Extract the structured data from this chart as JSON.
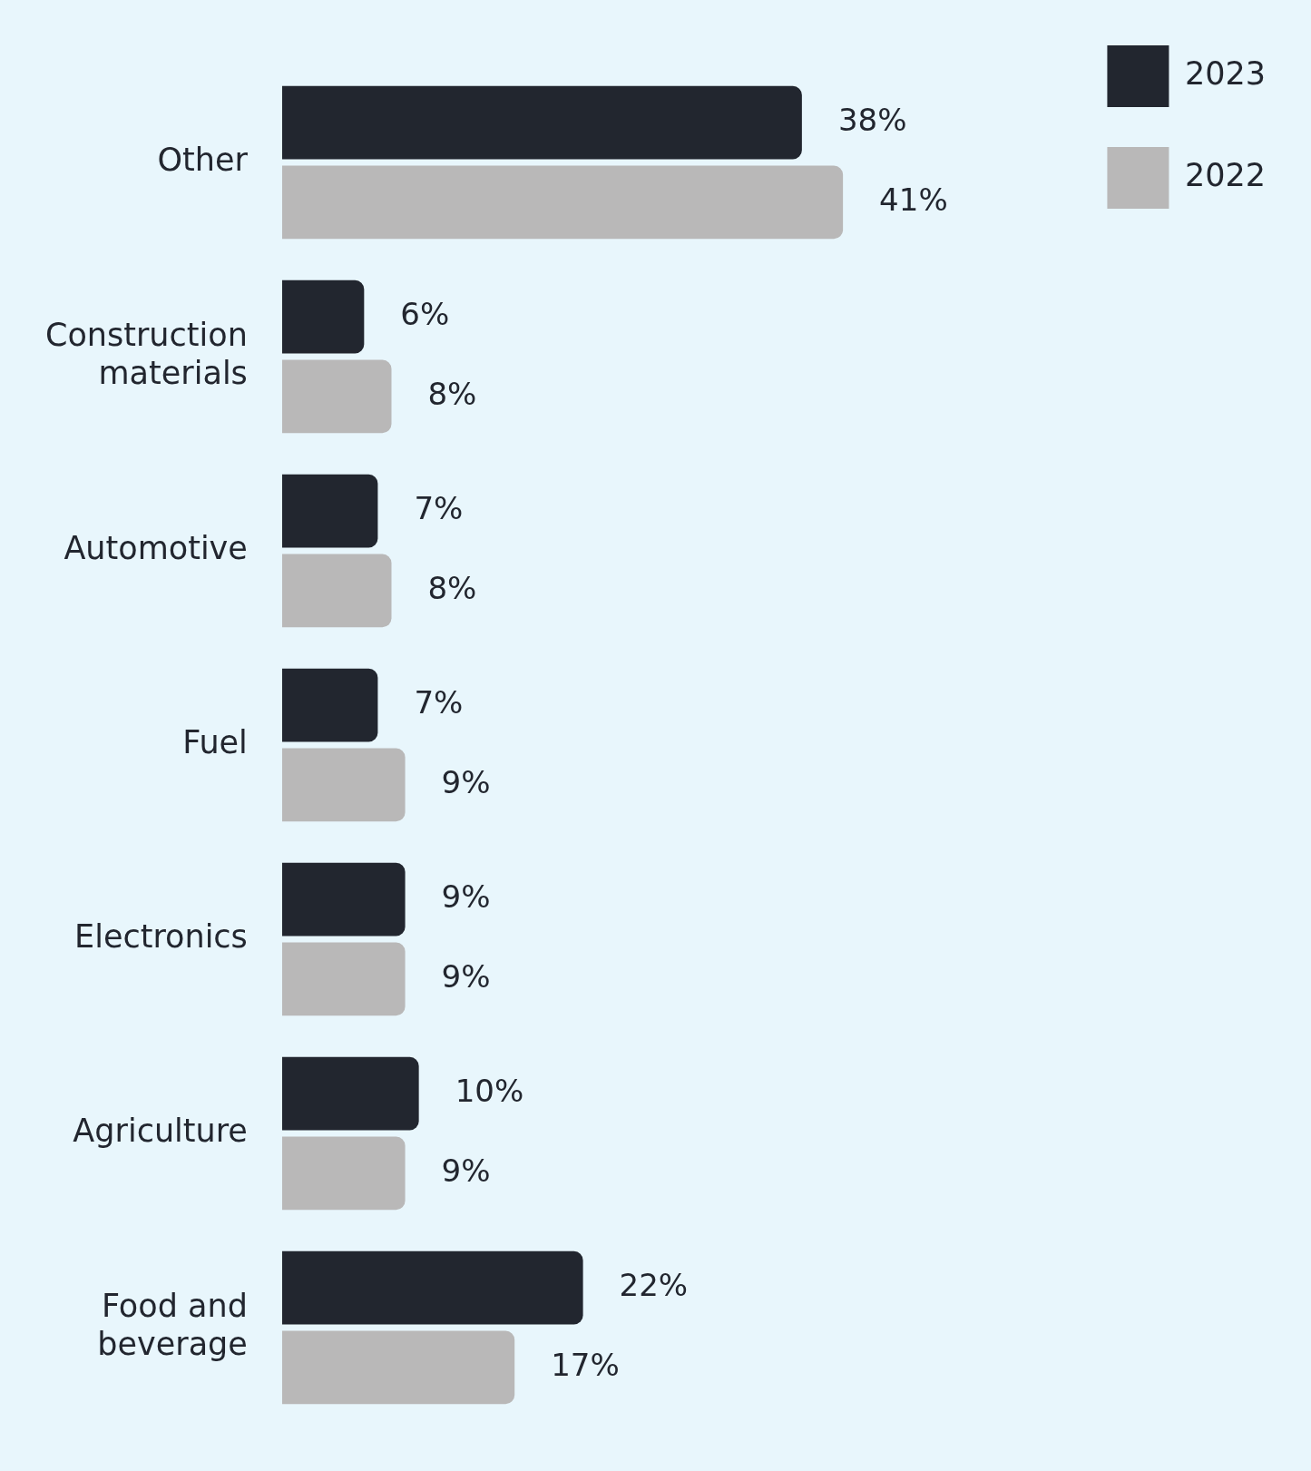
{
  "chart_data": {
    "type": "bar",
    "orientation": "horizontal",
    "categories": [
      "Other",
      "Construction materials",
      "Automotive",
      "Fuel",
      "Electronics",
      "Agriculture",
      "Food and beverage"
    ],
    "series": [
      {
        "name": "2023",
        "color": "#22262f",
        "values": [
          38,
          6,
          7,
          7,
          9,
          10,
          22
        ],
        "value_labels": [
          "38%",
          "6%",
          "7%",
          "7%",
          "9%",
          "10%",
          "22%"
        ]
      },
      {
        "name": "2022",
        "color": "#b9b8b8",
        "values": [
          41,
          8,
          8,
          9,
          9,
          9,
          17
        ],
        "value_labels": [
          "41%",
          "8%",
          "8%",
          "9%",
          "9%",
          "9%",
          "17%"
        ]
      }
    ],
    "legend": "top right"
  }
}
